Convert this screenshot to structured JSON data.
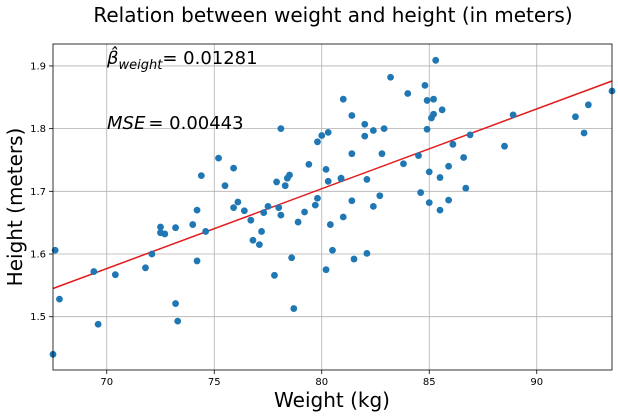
{
  "chart_data": {
    "type": "scatter",
    "title": "Relation between weight and height (in meters)",
    "xlabel": "Weight (kg)",
    "ylabel": "Height (meters)",
    "xlim": [
      67.5,
      93.5
    ],
    "ylim": [
      1.415,
      1.935
    ],
    "xticks": [
      70,
      75,
      80,
      85,
      90
    ],
    "yticks": [
      1.5,
      1.6,
      1.7,
      1.8,
      1.9
    ],
    "grid": true,
    "colors": {
      "points": "#1f77b4",
      "line": "#e31a1c",
      "grid": "#b0b0b0"
    },
    "annotations": [
      {
        "label": "β̂",
        "subscript": "weight",
        "value": "= 0.01281"
      },
      {
        "label": "MSE",
        "subscript": "",
        "value": "= 0.00443"
      }
    ],
    "regression_line": {
      "x": [
        67.5,
        93.5
      ],
      "y": [
        1.545,
        1.876
      ]
    },
    "points": [
      [
        67.5,
        1.44
      ],
      [
        67.6,
        1.606
      ],
      [
        67.8,
        1.528
      ],
      [
        69.4,
        1.572
      ],
      [
        69.6,
        1.488
      ],
      [
        70.4,
        1.567
      ],
      [
        71.8,
        1.578
      ],
      [
        72.1,
        1.6
      ],
      [
        72.5,
        1.643
      ],
      [
        72.5,
        1.634
      ],
      [
        72.7,
        1.632
      ],
      [
        73.2,
        1.642
      ],
      [
        73.2,
        1.521
      ],
      [
        73.3,
        1.493
      ],
      [
        74.0,
        1.647
      ],
      [
        74.2,
        1.67
      ],
      [
        74.2,
        1.589
      ],
      [
        74.4,
        1.725
      ],
      [
        74.6,
        1.636
      ],
      [
        75.2,
        1.753
      ],
      [
        75.5,
        1.709
      ],
      [
        75.9,
        1.737
      ],
      [
        75.9,
        1.674
      ],
      [
        76.1,
        1.683
      ],
      [
        76.4,
        1.669
      ],
      [
        76.7,
        1.654
      ],
      [
        76.8,
        1.622
      ],
      [
        77.1,
        1.615
      ],
      [
        77.2,
        1.636
      ],
      [
        77.3,
        1.666
      ],
      [
        77.5,
        1.676
      ],
      [
        77.8,
        1.566
      ],
      [
        77.9,
        1.715
      ],
      [
        78.0,
        1.674
      ],
      [
        78.1,
        1.8
      ],
      [
        78.1,
        1.662
      ],
      [
        78.3,
        1.709
      ],
      [
        78.4,
        1.721
      ],
      [
        78.5,
        1.726
      ],
      [
        78.6,
        1.594
      ],
      [
        78.7,
        1.513
      ],
      [
        78.9,
        1.651
      ],
      [
        79.2,
        1.667
      ],
      [
        79.4,
        1.743
      ],
      [
        79.7,
        1.678
      ],
      [
        79.8,
        1.689
      ],
      [
        79.8,
        1.779
      ],
      [
        80.0,
        1.789
      ],
      [
        80.2,
        1.735
      ],
      [
        80.2,
        1.575
      ],
      [
        80.3,
        1.716
      ],
      [
        80.3,
        1.794
      ],
      [
        80.4,
        1.647
      ],
      [
        80.5,
        1.606
      ],
      [
        80.9,
        1.721
      ],
      [
        80.9,
        1.72
      ],
      [
        81.0,
        1.659
      ],
      [
        81.0,
        1.847
      ],
      [
        81.4,
        1.821
      ],
      [
        81.4,
        1.76
      ],
      [
        81.4,
        1.685
      ],
      [
        81.5,
        1.592
      ],
      [
        82.0,
        1.807
      ],
      [
        82.0,
        1.788
      ],
      [
        82.1,
        1.719
      ],
      [
        82.1,
        1.601
      ],
      [
        82.4,
        1.676
      ],
      [
        82.4,
        1.797
      ],
      [
        82.7,
        1.693
      ],
      [
        82.8,
        1.76
      ],
      [
        82.9,
        1.8
      ],
      [
        83.2,
        1.882
      ],
      [
        83.8,
        1.744
      ],
      [
        84.0,
        1.856
      ],
      [
        84.5,
        1.757
      ],
      [
        84.6,
        1.698
      ],
      [
        84.8,
        1.869
      ],
      [
        84.9,
        1.845
      ],
      [
        84.9,
        1.799
      ],
      [
        85.0,
        1.682
      ],
      [
        85.0,
        1.731
      ],
      [
        85.1,
        1.817
      ],
      [
        85.2,
        1.847
      ],
      [
        85.2,
        1.823
      ],
      [
        85.3,
        1.909
      ],
      [
        85.5,
        1.722
      ],
      [
        85.5,
        1.67
      ],
      [
        85.6,
        1.83
      ],
      [
        85.9,
        1.74
      ],
      [
        85.9,
        1.686
      ],
      [
        86.1,
        1.775
      ],
      [
        86.6,
        1.754
      ],
      [
        86.7,
        1.705
      ],
      [
        86.9,
        1.79
      ],
      [
        88.5,
        1.772
      ],
      [
        88.9,
        1.822
      ],
      [
        91.8,
        1.819
      ],
      [
        92.2,
        1.793
      ],
      [
        92.4,
        1.838
      ],
      [
        93.5,
        1.86
      ]
    ]
  }
}
